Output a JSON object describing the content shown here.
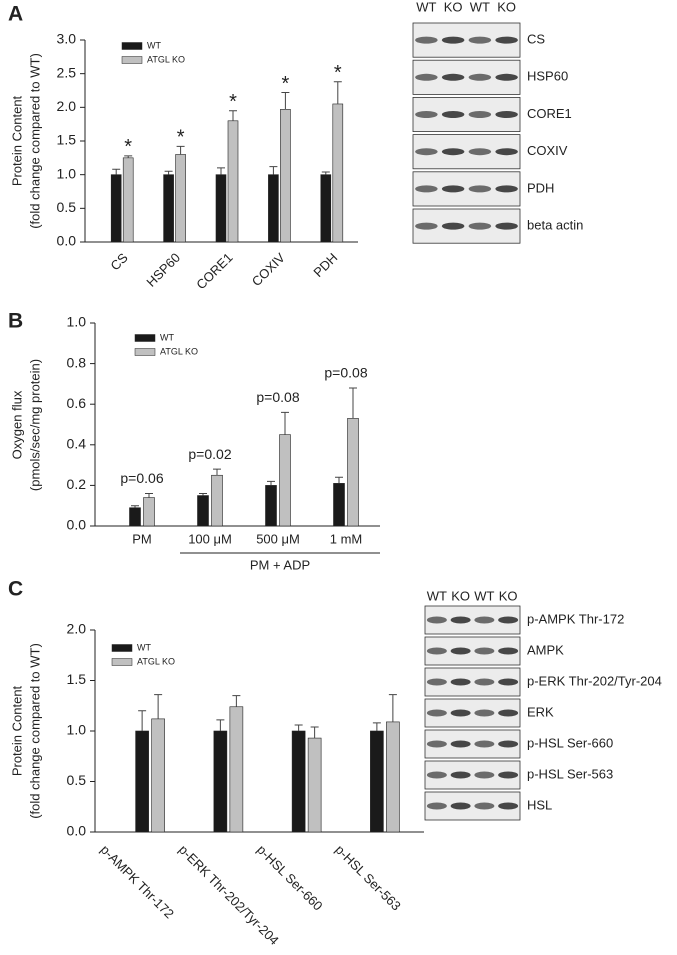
{
  "chart_data": [
    {
      "type": "bar",
      "panel": "A",
      "ylabel": [
        "Protein  Content",
        "(fold change compared to WT)"
      ],
      "categories": [
        "CS",
        "HSP60",
        "CORE1",
        "COXIV",
        "PDH"
      ],
      "series": [
        {
          "name": "WT",
          "color": "#1a1a1a",
          "values": [
            1.0,
            1.0,
            1.0,
            1.0,
            1.0
          ],
          "errors": [
            0.08,
            0.05,
            0.1,
            0.12,
            0.04
          ]
        },
        {
          "name": "ATGL KO",
          "color": "#c0c0c0",
          "values": [
            1.25,
            1.3,
            1.8,
            1.97,
            2.05
          ],
          "errors": [
            0.03,
            0.12,
            0.15,
            0.25,
            0.33
          ]
        }
      ],
      "annotations": [
        "*",
        "*",
        "*",
        "*",
        "*"
      ],
      "ylim": [
        0,
        3
      ],
      "yticks": [
        {
          "value": 0,
          "label": "0.0"
        },
        0.5,
        {
          "value": 1,
          "label": "1.0"
        },
        1.5,
        {
          "value": 2,
          "label": "2.0"
        },
        2.5,
        {
          "value": 3,
          "label": "3.0"
        }
      ],
      "blot": {
        "columns": [
          "WT",
          "KO",
          "WT",
          "KO"
        ],
        "rows": [
          "CS",
          "HSP60",
          "CORE1",
          "COXIV",
          "PDH",
          "beta actin"
        ]
      }
    },
    {
      "type": "bar",
      "panel": "B",
      "ylabel": [
        "Oxygen flux",
        "(pmols/sec/mg protein)"
      ],
      "categories": [
        "PM",
        "100 μM",
        "500 μM",
        "1 mM"
      ],
      "group_label": "PM + ADP",
      "series": [
        {
          "name": "WT",
          "color": "#1a1a1a",
          "values": [
            0.09,
            0.15,
            0.2,
            0.21
          ],
          "errors": [
            0.01,
            0.01,
            0.02,
            0.03
          ]
        },
        {
          "name": "ATGL KO",
          "color": "#c0c0c0",
          "values": [
            0.14,
            0.25,
            0.45,
            0.53
          ],
          "errors": [
            0.02,
            0.03,
            0.11,
            0.15
          ]
        }
      ],
      "annotations": [
        "p=0.06",
        "p=0.02",
        "p=0.08",
        "p=0.08"
      ],
      "ylim": [
        0,
        1
      ],
      "yticks": [
        {
          "value": 0,
          "label": "0.0"
        },
        0.2,
        0.4,
        0.6,
        0.8,
        {
          "value": 1,
          "label": "1.0"
        }
      ]
    },
    {
      "type": "bar",
      "panel": "C",
      "ylabel": [
        "Protein  Content",
        "(fold change compared to WT)"
      ],
      "categories": [
        "p-AMPK Thr-172",
        "p-ERK Thr-202/Tyr-204",
        "p-HSL Ser-660",
        "p-HSL Ser-563"
      ],
      "series": [
        {
          "name": "WT",
          "color": "#1a1a1a",
          "values": [
            1.0,
            1.0,
            1.0,
            1.0
          ],
          "errors": [
            0.2,
            0.11,
            0.06,
            0.08
          ]
        },
        {
          "name": "ATGL KO",
          "color": "#c0c0c0",
          "values": [
            1.12,
            1.24,
            0.93,
            1.09
          ],
          "errors": [
            0.24,
            0.11,
            0.11,
            0.27
          ]
        }
      ],
      "ylim": [
        0,
        2
      ],
      "yticks": [
        {
          "value": 0,
          "label": "0.0"
        },
        0.5,
        {
          "value": 1,
          "label": "1.0"
        },
        1.5,
        {
          "value": 2,
          "label": "2.0"
        }
      ],
      "blot": {
        "columns": [
          "WT",
          "KO",
          "WT",
          "KO"
        ],
        "rows": [
          "p-AMPK Thr-172",
          "AMPK",
          "p-ERK Thr-202/Tyr-204",
          "ERK",
          "p-HSL Ser-660",
          "p-HSL Ser-563",
          "HSL"
        ]
      }
    }
  ]
}
